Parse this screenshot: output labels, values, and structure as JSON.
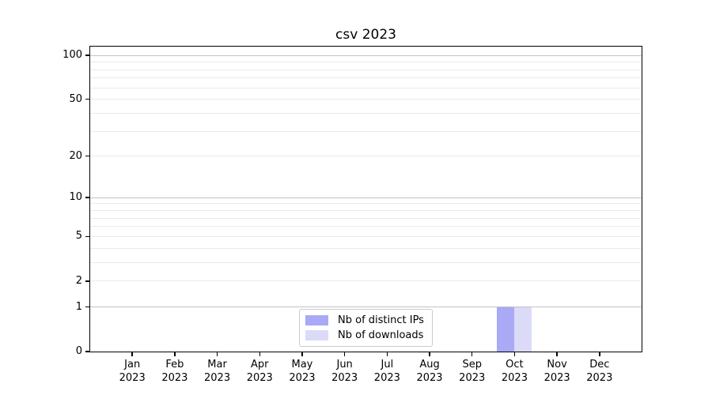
{
  "chart_data": {
    "type": "bar",
    "title": "csv 2023",
    "categories": [
      "Jan",
      "Feb",
      "Mar",
      "Apr",
      "May",
      "Jun",
      "Jul",
      "Aug",
      "Sep",
      "Oct",
      "Nov",
      "Dec"
    ],
    "x_tick_second_line": "2023",
    "series": [
      {
        "name": "Nb of distinct IPs",
        "color": "#a9a9f5",
        "values": [
          0,
          0,
          0,
          0,
          0,
          0,
          0,
          0,
          0,
          1,
          0,
          0
        ]
      },
      {
        "name": "Nb of downloads",
        "color": "#dbdbf8",
        "values": [
          0,
          0,
          0,
          0,
          0,
          0,
          0,
          0,
          0,
          1,
          0,
          0
        ]
      }
    ],
    "y_axis": {
      "scale": "log1p",
      "tick_values": [
        0,
        1,
        2,
        5,
        10,
        20,
        50,
        100
      ],
      "max": 112,
      "gridlines_major": [
        1,
        10,
        100
      ],
      "gridlines_minor": [
        2,
        3,
        4,
        5,
        6,
        7,
        8,
        9,
        20,
        30,
        40,
        50,
        60,
        70,
        80,
        90
      ]
    },
    "xlabel": "",
    "ylabel": "",
    "grid": true,
    "legend_position": "lower center",
    "colors": {
      "grid_major": "#c2c2c2",
      "grid_minor": "#eaeaea",
      "spine": "#000000",
      "background": "#ffffff"
    }
  }
}
